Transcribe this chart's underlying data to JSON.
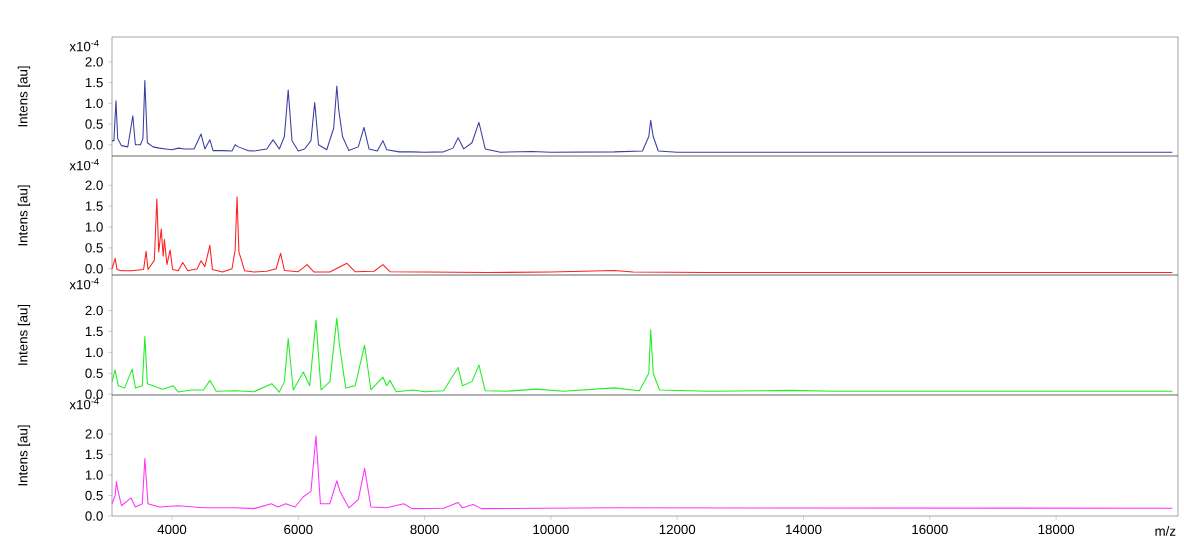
{
  "chart_data": [
    {
      "type": "line",
      "ylabel": "Intens [au]",
      "annotations": [
        "x10$^{-4}$"
      ],
      "color": "#3a3fa0",
      "tick_labels": "y",
      "xlim": [
        3050,
        19930
      ],
      "ylim": [
        -0.27,
        2.6
      ],
      "yticks": [
        {
          "value": 0,
          "label": "0.0"
        },
        {
          "value": 0.5,
          "label": "0.5"
        },
        {
          "value": 1,
          "label": "1.0"
        },
        {
          "value": 1.5,
          "label": "1.5"
        },
        {
          "value": 2,
          "label": "2.0"
        }
      ],
      "x": [
        3050,
        3080,
        3113,
        3140,
        3200,
        3300,
        3380,
        3420,
        3500,
        3540,
        3570,
        3610,
        3700,
        3800,
        3900,
        4000,
        4100,
        4200,
        4350,
        4460,
        4520,
        4600,
        4650,
        4800,
        4950,
        5000,
        5050,
        5200,
        5300,
        5500,
        5600,
        5700,
        5780,
        5840,
        5900,
        6000,
        6100,
        6200,
        6260,
        6320,
        6450,
        6560,
        6610,
        6640,
        6700,
        6800,
        6950,
        7040,
        7120,
        7250,
        7340,
        7400,
        7600,
        7800,
        8000,
        8300,
        8450,
        8530,
        8620,
        8750,
        8860,
        8960,
        9200,
        9700,
        10000,
        11000,
        11450,
        11550,
        11580,
        11620,
        11700,
        12000,
        15000,
        19840
      ],
      "values": [
        0.1,
        0.1,
        1.06,
        0.15,
        -0.02,
        -0.05,
        0.7,
        0.0,
        0.0,
        0.15,
        1.55,
        0.05,
        -0.05,
        -0.08,
        -0.1,
        -0.12,
        -0.08,
        -0.1,
        -0.1,
        0.26,
        -0.1,
        0.12,
        -0.14,
        -0.14,
        -0.15,
        0.0,
        -0.05,
        -0.14,
        -0.15,
        -0.1,
        0.12,
        -0.1,
        0.2,
        1.32,
        0.1,
        -0.15,
        -0.1,
        0.1,
        1.02,
        0.0,
        -0.12,
        0.4,
        1.42,
        0.85,
        0.2,
        -0.14,
        -0.05,
        0.42,
        -0.1,
        -0.15,
        0.1,
        -0.12,
        -0.17,
        -0.17,
        -0.18,
        -0.17,
        -0.08,
        0.17,
        -0.1,
        0.05,
        0.54,
        -0.1,
        -0.18,
        -0.16,
        -0.18,
        -0.17,
        -0.15,
        0.2,
        0.59,
        0.2,
        -0.15,
        -0.18,
        -0.18,
        -0.18
      ]
    },
    {
      "type": "line",
      "ylabel": "Intens [au]",
      "annotations": [
        "x10$^{-4}$"
      ],
      "color": "#ff2020",
      "tick_labels": "y",
      "xlim": [
        3050,
        19930
      ],
      "ylim": [
        -0.15,
        2.7
      ],
      "yticks": [
        {
          "value": 0,
          "label": "0.0"
        },
        {
          "value": 0.5,
          "label": "0.5"
        },
        {
          "value": 1,
          "label": "1.0"
        },
        {
          "value": 1.5,
          "label": "1.5"
        },
        {
          "value": 2,
          "label": "2.0"
        }
      ],
      "x": [
        3050,
        3100,
        3130,
        3200,
        3350,
        3550,
        3590,
        3620,
        3720,
        3760,
        3790,
        3830,
        3860,
        3880,
        3920,
        3970,
        4010,
        4100,
        4170,
        4250,
        4400,
        4460,
        4520,
        4600,
        4640,
        4800,
        4950,
        5000,
        5030,
        5060,
        5150,
        5300,
        5500,
        5650,
        5720,
        5780,
        6000,
        6140,
        6250,
        6500,
        6770,
        6900,
        7200,
        7340,
        7450,
        8000,
        9000,
        10000,
        11000,
        11300,
        12500,
        19840
      ],
      "values": [
        0.0,
        0.25,
        -0.02,
        -0.05,
        -0.05,
        -0.02,
        0.42,
        -0.02,
        0.2,
        1.67,
        0.4,
        0.95,
        0.3,
        0.7,
        0.1,
        0.45,
        -0.02,
        -0.05,
        0.15,
        -0.05,
        0.0,
        0.19,
        0.05,
        0.56,
        -0.02,
        -0.08,
        0.0,
        0.45,
        1.72,
        0.4,
        -0.05,
        -0.08,
        -0.06,
        0.0,
        0.37,
        -0.04,
        -0.07,
        0.1,
        -0.08,
        -0.08,
        0.13,
        -0.07,
        -0.06,
        0.1,
        -0.07,
        -0.08,
        -0.09,
        -0.08,
        -0.04,
        -0.08,
        -0.09,
        -0.09
      ]
    },
    {
      "type": "line",
      "ylabel": "Intens [au]",
      "annotations": [
        "x10$^{-4}$"
      ],
      "color": "#22ee22",
      "tick_labels": "y",
      "xlim": [
        3050,
        19930
      ],
      "ylim": [
        -0.02,
        2.85
      ],
      "yticks": [
        {
          "value": 0,
          "label": "0.0"
        },
        {
          "value": 0.5,
          "label": "0.5"
        },
        {
          "value": 1,
          "label": "1.0"
        },
        {
          "value": 1.5,
          "label": "1.5"
        },
        {
          "value": 2,
          "label": "2.0"
        }
      ],
      "x": [
        3050,
        3100,
        3150,
        3250,
        3370,
        3420,
        3530,
        3570,
        3610,
        3700,
        3850,
        4020,
        4100,
        4300,
        4500,
        4600,
        4700,
        5000,
        5300,
        5580,
        5700,
        5780,
        5840,
        5920,
        6080,
        6180,
        6280,
        6360,
        6500,
        6610,
        6650,
        6750,
        6900,
        7050,
        7150,
        7340,
        7400,
        7450,
        7550,
        7820,
        8000,
        8300,
        8530,
        8600,
        8750,
        8860,
        8960,
        9300,
        9770,
        10200,
        11000,
        11400,
        11550,
        11580,
        11620,
        11720,
        12500,
        13800,
        14500,
        19840
      ],
      "values": [
        0.3,
        0.58,
        0.2,
        0.15,
        0.6,
        0.15,
        0.2,
        1.38,
        0.25,
        0.2,
        0.12,
        0.2,
        0.05,
        0.1,
        0.1,
        0.33,
        0.07,
        0.08,
        0.06,
        0.25,
        0.05,
        0.3,
        1.33,
        0.1,
        0.53,
        0.2,
        1.77,
        0.1,
        0.3,
        1.82,
        1.2,
        0.15,
        0.2,
        1.17,
        0.1,
        0.41,
        0.2,
        0.33,
        0.06,
        0.1,
        0.06,
        0.08,
        0.64,
        0.2,
        0.3,
        0.7,
        0.08,
        0.07,
        0.12,
        0.07,
        0.15,
        0.08,
        0.5,
        1.54,
        0.5,
        0.1,
        0.07,
        0.09,
        0.07,
        0.07
      ]
    },
    {
      "type": "line",
      "ylabel": "Intens [au]",
      "xlabel": "m/z",
      "annotations": [
        "x10$^{-4}$"
      ],
      "color": "#ff33ff",
      "xlim": [
        3050,
        19930
      ],
      "ylim": [
        0,
        2.95
      ],
      "xticks": [
        4000,
        6000,
        8000,
        10000,
        12000,
        14000,
        16000,
        18000
      ],
      "yticks": [
        {
          "value": 0,
          "label": "0.0"
        },
        {
          "value": 0.5,
          "label": "0.5"
        },
        {
          "value": 1,
          "label": "1.0"
        },
        {
          "value": 1.5,
          "label": "1.5"
        },
        {
          "value": 2,
          "label": "2.0"
        }
      ],
      "x": [
        3050,
        3100,
        3120,
        3140,
        3200,
        3350,
        3420,
        3530,
        3570,
        3620,
        3800,
        4100,
        4500,
        5000,
        5300,
        5570,
        5680,
        5800,
        5950,
        6080,
        6200,
        6280,
        6350,
        6500,
        6610,
        6660,
        6800,
        6950,
        7050,
        7150,
        7400,
        7670,
        7800,
        8300,
        8530,
        8600,
        8770,
        8900,
        11000,
        19840
      ],
      "values": [
        0.3,
        0.5,
        0.84,
        0.65,
        0.25,
        0.44,
        0.22,
        0.3,
        1.4,
        0.3,
        0.22,
        0.25,
        0.2,
        0.2,
        0.18,
        0.3,
        0.22,
        0.3,
        0.22,
        0.47,
        0.6,
        1.95,
        0.3,
        0.3,
        0.86,
        0.6,
        0.2,
        0.4,
        1.16,
        0.22,
        0.2,
        0.3,
        0.18,
        0.19,
        0.33,
        0.2,
        0.28,
        0.18,
        0.2,
        0.19
      ]
    }
  ]
}
